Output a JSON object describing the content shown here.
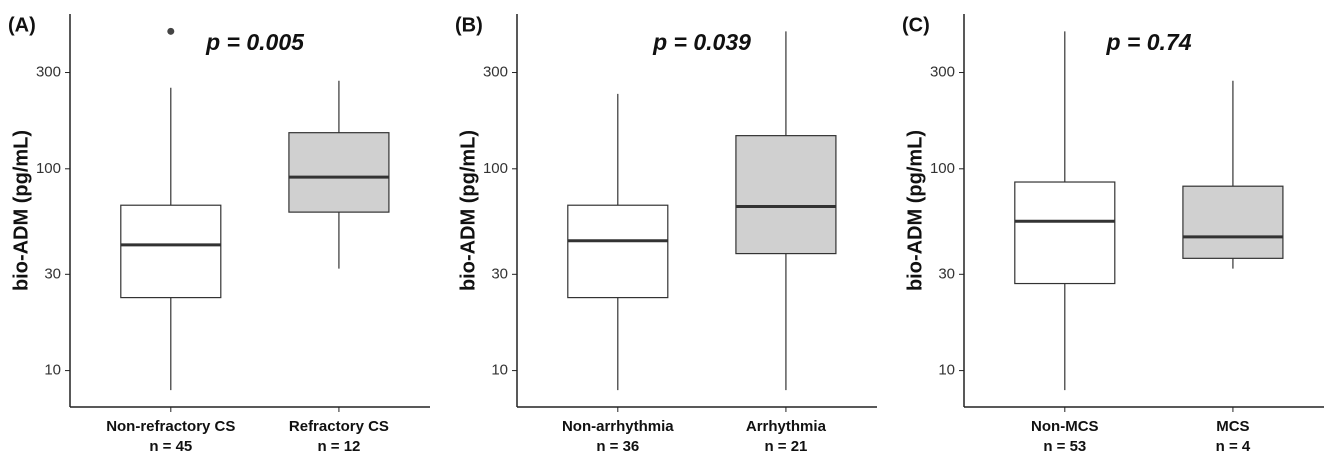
{
  "chart_data": [
    {
      "type": "box",
      "title": "(A)",
      "annotation": "p = 0.005",
      "y_label": "bio-ADM (pg/mL)",
      "log_scale": true,
      "ylim": [
        6.6,
        585
      ],
      "yticks": [
        10,
        30,
        100,
        300
      ],
      "categories": [
        "Non-refractory CS",
        "Refractory CS"
      ],
      "n_labels": [
        "n = 45",
        "n = 12"
      ],
      "colors": [
        "#ffffff",
        "#d0d0d0"
      ],
      "boxes": [
        {
          "low": 8,
          "q1": 23,
          "median": 42,
          "q3": 66,
          "high": 252,
          "outliers": [
            480
          ]
        },
        {
          "low": 32,
          "q1": 61,
          "median": 91,
          "q3": 151,
          "high": 273,
          "outliers": []
        }
      ]
    },
    {
      "type": "box",
      "title": "(B)",
      "annotation": "p = 0.039",
      "y_label": "bio-ADM (pg/mL)",
      "log_scale": true,
      "ylim": [
        6.6,
        585
      ],
      "yticks": [
        10,
        30,
        100,
        300
      ],
      "categories": [
        "Non-arrhythmia",
        "Arrhythmia"
      ],
      "n_labels": [
        "n = 36",
        "n = 21"
      ],
      "colors": [
        "#ffffff",
        "#d0d0d0"
      ],
      "boxes": [
        {
          "low": 8,
          "q1": 23,
          "median": 44,
          "q3": 66,
          "high": 235,
          "outliers": []
        },
        {
          "low": 8,
          "q1": 38,
          "median": 65,
          "q3": 146,
          "high": 480,
          "outliers": []
        }
      ]
    },
    {
      "type": "box",
      "title": "(C)",
      "annotation": "p = 0.74",
      "y_label": "bio-ADM (pg/mL)",
      "log_scale": true,
      "ylim": [
        6.6,
        585
      ],
      "yticks": [
        10,
        30,
        100,
        300
      ],
      "categories": [
        "Non-MCS",
        "MCS"
      ],
      "n_labels": [
        "n = 53",
        "n = 4"
      ],
      "colors": [
        "#ffffff",
        "#d0d0d0"
      ],
      "boxes": [
        {
          "low": 8,
          "q1": 27,
          "median": 55,
          "q3": 86,
          "high": 480,
          "outliers": []
        },
        {
          "low": 32,
          "q1": 36,
          "median": 46,
          "q3": 82,
          "high": 273,
          "outliers": []
        }
      ]
    }
  ]
}
